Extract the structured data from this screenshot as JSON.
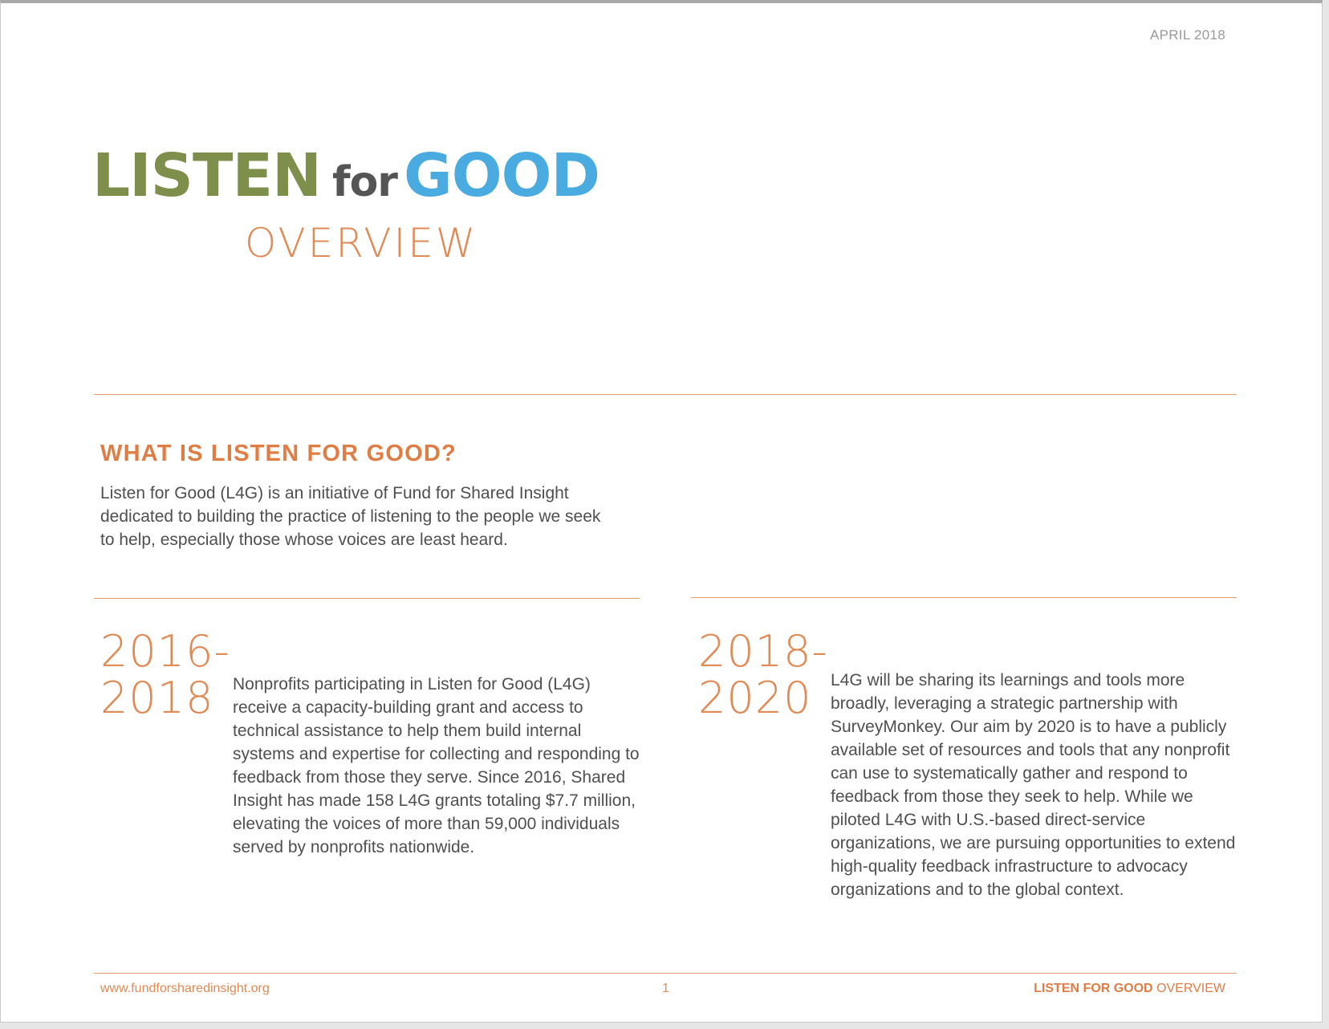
{
  "header": {
    "date": "APRIL 2018"
  },
  "logo": {
    "word1": "LISTEN",
    "word2": "for",
    "word3": "GOOD",
    "subtitle": "OVERVIEW",
    "colors": {
      "listen": "#7d8f4a",
      "for": "#555555",
      "good": "#4aabe0",
      "overview": "#e08a55"
    }
  },
  "section": {
    "heading": "WHAT IS LISTEN FOR GOOD?",
    "intro": "Listen for Good (L4G) is an initiative of Fund for Shared Insight dedicated to building the practice of listening to the people we seek to help, especially those whose voices are least heard."
  },
  "columns": [
    {
      "year_line1": "2016-",
      "year_line2": "2018",
      "text": "Nonprofits participating in Listen for Good (L4G) receive a capacity-building grant and access to technical assistance to help them build internal systems and expertise for collecting and responding to feedback from those they serve. Since 2016, Shared Insight has made 158 L4G grants totaling $7.7 million, elevating the voices of more than 59,000 individuals served by nonprofits nationwide."
    },
    {
      "year_line1": "2018-",
      "year_line2": "2020",
      "text": "L4G will be sharing its learnings and tools more broadly, leveraging a strategic partnership with SurveyMonkey. Our aim by 2020 is to have a publicly available set of resources and tools that any nonprofit can use to systematically gather and respond to feedback from those they seek to help. While we piloted L4G with U.S.-based direct-service organizations, we are pursuing opportunities to extend high-quality feedback infrastructure to advocacy organizations and to the global context."
    }
  ],
  "footer": {
    "url": "www.fundforsharedinsight.org",
    "page_number": "1",
    "title_bold": "LISTEN FOR GOOD",
    "title_light": " OVERVIEW"
  },
  "accent_color": "#e08a55"
}
